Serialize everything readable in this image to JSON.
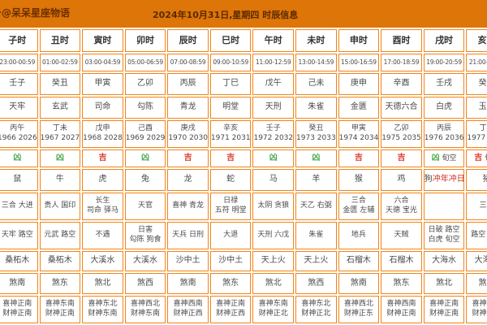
{
  "header": {
    "account_label": "号@呆呆星座物语",
    "title": "2024年10月31日,星期四 时辰信息"
  },
  "colors": {
    "header_bg": "#DE7508",
    "grid_border": "#F08418",
    "auspicious_red": "#DC3A2A",
    "inauspicious_green": "#46A94B",
    "clash_note_red": "#D03028"
  },
  "legend": {
    "auspicious_label": "吉",
    "inauspicious_label": "凶"
  },
  "table": {
    "columns": [
      {
        "hour": "子时",
        "time": "23:00-00:59",
        "ganzhi": "壬子",
        "duty_god": "天牢",
        "clash": [
          "丙午",
          "1966 2026"
        ],
        "luck": "凶",
        "luck_type": "inauspicious",
        "luck_extra": "",
        "zodiac": "鼠",
        "zodiac_note": "",
        "auspicious": [
          "三合 大进"
        ],
        "inauspicious": [
          "天牢 路空"
        ],
        "nayin": "桑柘木",
        "sha": "煞南",
        "directions": [
          "喜神正南",
          "财神正南"
        ]
      },
      {
        "hour": "丑时",
        "time": "01:00-02:59",
        "ganzhi": "癸丑",
        "duty_god": "玄武",
        "clash": [
          "丁未",
          "1967 2027"
        ],
        "luck": "凶",
        "luck_type": "inauspicious",
        "luck_extra": "",
        "zodiac": "牛",
        "zodiac_note": "",
        "auspicious": [
          "贵人 国印"
        ],
        "inauspicious": [
          "元武 路空"
        ],
        "nayin": "桑柘木",
        "sha": "煞东",
        "directions": [
          "喜神东南",
          "财神正南"
        ]
      },
      {
        "hour": "寅时",
        "time": "03:00-04:59",
        "ganzhi": "甲寅",
        "duty_god": "司命",
        "clash": [
          "戊申",
          "1968 2028"
        ],
        "luck": "吉",
        "luck_type": "auspicious",
        "luck_extra": "",
        "zodiac": "虎",
        "zodiac_note": "",
        "auspicious": [
          "长生",
          "司命 驿马"
        ],
        "inauspicious": [
          "不遇"
        ],
        "nayin": "大溪水",
        "sha": "煞北",
        "directions": [
          "喜神东北",
          "财神东南"
        ]
      },
      {
        "hour": "卯时",
        "time": "05:00-06:59",
        "ganzhi": "乙卯",
        "duty_god": "勾陈",
        "clash": [
          "己酉",
          "1969 2029"
        ],
        "luck": "凶",
        "luck_type": "inauspicious",
        "luck_extra": "",
        "zodiac": "兔",
        "zodiac_note": "",
        "auspicious": [
          "天官"
        ],
        "inauspicious": [
          "日害",
          "勾陈 狗食"
        ],
        "nayin": "大溪水",
        "sha": "煞西",
        "directions": [
          "喜神西北",
          "财神东南"
        ]
      },
      {
        "hour": "辰时",
        "time": "07:00-08:59",
        "ganzhi": "丙辰",
        "duty_god": "青龙",
        "clash": [
          "庚戌",
          "1970 2030"
        ],
        "luck": "吉",
        "luck_type": "auspicious",
        "luck_extra": "",
        "zodiac": "龙",
        "zodiac_note": "",
        "auspicious": [
          "喜神 青龙"
        ],
        "inauspicious": [
          "天兵 日刑"
        ],
        "nayin": "沙中土",
        "sha": "煞南",
        "directions": [
          "喜神西南",
          "财神正西"
        ]
      },
      {
        "hour": "巳时",
        "time": "09:00-10:59",
        "ganzhi": "丁巳",
        "duty_god": "明堂",
        "clash": [
          "辛亥",
          "1971 2031"
        ],
        "luck": "吉",
        "luck_type": "auspicious",
        "luck_extra": "",
        "zodiac": "蛇",
        "zodiac_note": "",
        "auspicious": [
          "日禄",
          "五符 明堂"
        ],
        "inauspicious": [
          "大退"
        ],
        "nayin": "沙中土",
        "sha": "煞东",
        "directions": [
          "喜神正南",
          "财神正西"
        ]
      },
      {
        "hour": "午时",
        "time": "11:00-12:59",
        "ganzhi": "戊午",
        "duty_god": "天刑",
        "clash": [
          "壬子",
          "1972 2032"
        ],
        "luck": "凶",
        "luck_type": "inauspicious",
        "luck_extra": "",
        "zodiac": "马",
        "zodiac_note": "",
        "auspicious": [
          "太阴 贪狼"
        ],
        "inauspicious": [
          "天刑 六戊"
        ],
        "nayin": "天上火",
        "sha": "煞北",
        "directions": [
          "喜神东南",
          "财神正北"
        ]
      },
      {
        "hour": "未时",
        "time": "13:00-14:59",
        "ganzhi": "己未",
        "duty_god": "朱雀",
        "clash": [
          "癸丑",
          "1973 2033"
        ],
        "luck": "凶",
        "luck_type": "inauspicious",
        "luck_extra": "",
        "zodiac": "羊",
        "zodiac_note": "",
        "auspicious": [
          "天乙 右弼"
        ],
        "inauspicious": [
          "朱雀"
        ],
        "nayin": "天上火",
        "sha": "煞西",
        "directions": [
          "喜神东北",
          "财神正北"
        ]
      },
      {
        "hour": "申时",
        "time": "15:00-16:59",
        "ganzhi": "庚申",
        "duty_god": "金匮",
        "clash": [
          "甲寅",
          "1974 2034"
        ],
        "luck": "吉",
        "luck_type": "auspicious",
        "luck_extra": "",
        "zodiac": "猴",
        "zodiac_note": "",
        "auspicious": [
          "三合",
          "金匮 左辅"
        ],
        "inauspicious": [
          "地兵"
        ],
        "nayin": "石榴木",
        "sha": "煞南",
        "directions": [
          "喜神西北",
          "财神正东"
        ]
      },
      {
        "hour": "酉时",
        "time": "17:00-18:59",
        "ganzhi": "辛酉",
        "duty_god": "天德六合",
        "clash": [
          "乙卯",
          "1975 2035"
        ],
        "luck": "吉",
        "luck_type": "auspicious",
        "luck_extra": "",
        "zodiac": "鸡",
        "zodiac_note": "",
        "auspicious": [
          "六合",
          "天德 宝光"
        ],
        "inauspicious": [
          "天贼"
        ],
        "nayin": "石榴木",
        "sha": "煞东",
        "directions": [
          "喜神西南",
          "财神正南"
        ]
      },
      {
        "hour": "戌时",
        "time": "19:00-20:59",
        "ganzhi": "壬戌",
        "duty_god": "白虎",
        "clash": [
          "丙辰",
          "1976 2036"
        ],
        "luck": "凶",
        "luck_type": "inauspicious",
        "luck_extra": "旬空",
        "zodiac": "狗",
        "zodiac_note": "冲年冲日",
        "auspicious": [],
        "inauspicious": [
          "日破 路空",
          "白虎 旬空"
        ],
        "nayin": "大海水",
        "sha": "煞北",
        "directions": [
          "喜神正南",
          "财神正南"
        ]
      },
      {
        "hour": "亥时",
        "time": "21:00-22:59",
        "ganzhi": "癸亥",
        "duty_god": "玉堂",
        "clash": [
          "丁巳",
          "1977 2037"
        ],
        "luck": "吉",
        "luck_type": "auspicious",
        "luck_extra": "旬空",
        "zodiac": "猪",
        "zodiac_note": "",
        "auspicious": [
          "三合"
        ],
        "inauspicious": [
          "路空 旬空"
        ],
        "nayin": "大海水",
        "sha": "煞西",
        "directions": [
          "喜神东南",
          "财神正南"
        ]
      }
    ]
  }
}
